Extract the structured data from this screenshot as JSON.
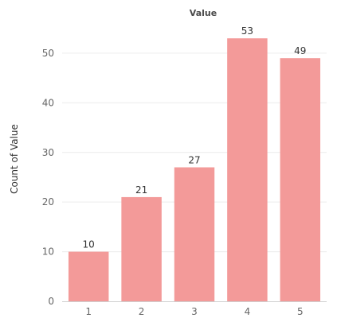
{
  "chart_data": {
    "type": "bar",
    "title": "Value",
    "xlabel": "",
    "ylabel": "Count of Value",
    "categories": [
      "1",
      "2",
      "3",
      "4",
      "5"
    ],
    "values": [
      10,
      21,
      27,
      53,
      49
    ],
    "data_labels": [
      "10",
      "21",
      "27",
      "53",
      "49"
    ],
    "yticks": [
      0,
      10,
      20,
      30,
      40,
      50
    ],
    "ylim": [
      0,
      58
    ],
    "grid": true,
    "legend": "none",
    "bar_color": "#F39A99"
  }
}
